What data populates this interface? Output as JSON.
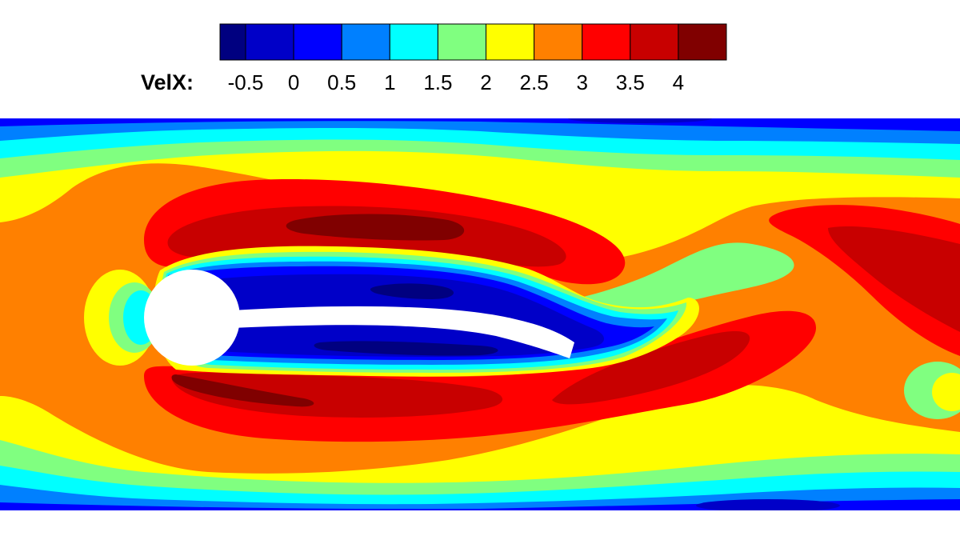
{
  "chart_data": {
    "type": "heatmap",
    "variable_label": "VelX:",
    "legend": {
      "placement": "top-center",
      "tick_labels": [
        "-0.5",
        "0",
        "0.5",
        "1",
        "1.5",
        "2",
        "2.5",
        "3",
        "3.5",
        "4"
      ],
      "levels": [
        -1.0,
        -0.5,
        0,
        0.5,
        1,
        1.5,
        2,
        2.5,
        3,
        3.5,
        4,
        4.5
      ],
      "colors": [
        "#000080",
        "#0000c8",
        "#0000ff",
        "#0080ff",
        "#00ffff",
        "#80ff80",
        "#ffff00",
        "#ff8000",
        "#ff0000",
        "#c80000",
        "#800000"
      ]
    },
    "field": {
      "description_units": "x-velocity contours in a channel behind a cylinder with an attached flexible plate",
      "inflow_velocity": 3.0,
      "wall_velocity": 0.0,
      "bands": [
        {
          "level": "3.5-4.0",
          "color": "#c80000"
        },
        {
          "level": "4.0-4.5",
          "color": "#800000"
        }
      ]
    },
    "grid": false
  }
}
